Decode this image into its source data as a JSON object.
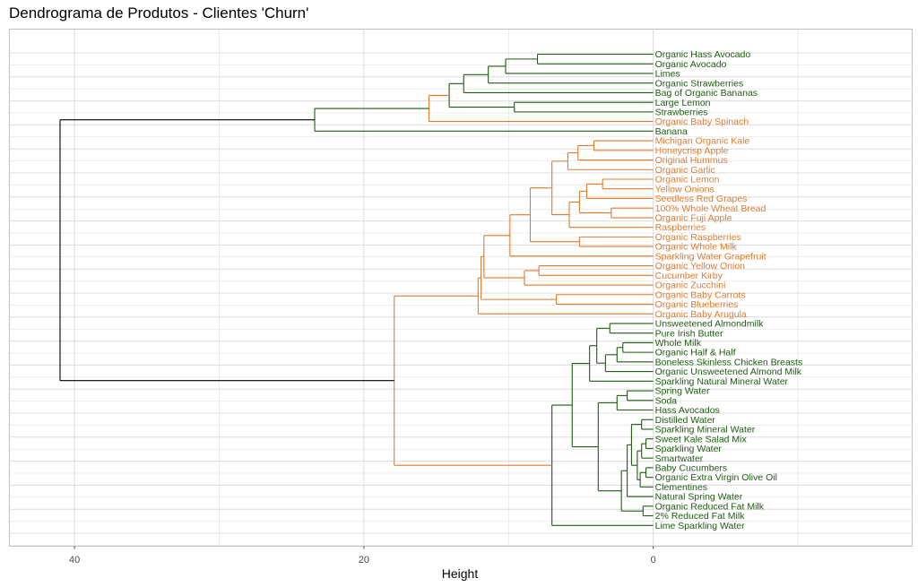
{
  "chart_data": {
    "type": "dendrogram",
    "title": "Dendrograma de Produtos - Clientes 'Churn'",
    "xlabel": "Height",
    "x_ticks": [
      40,
      20,
      0
    ],
    "xlim": [
      44.5,
      -17.9
    ],
    "colors": {
      "green": "#1e5c12",
      "orange": "#e07b2e",
      "root": "#000000",
      "grid": "#dcdcdc",
      "panel_border": "#bfbfbf"
    },
    "leaves": [
      {
        "label": "Organic Hass Avocado",
        "color": "green"
      },
      {
        "label": "Organic Avocado",
        "color": "green"
      },
      {
        "label": "Limes",
        "color": "green"
      },
      {
        "label": "Organic Strawberries",
        "color": "green"
      },
      {
        "label": "Bag of Organic Bananas",
        "color": "green"
      },
      {
        "label": "Large Lemon",
        "color": "green"
      },
      {
        "label": "Strawberries",
        "color": "green"
      },
      {
        "label": "Organic Baby Spinach",
        "color": "orange"
      },
      {
        "label": "Banana",
        "color": "green"
      },
      {
        "label": "Michigan Organic Kale",
        "color": "orange"
      },
      {
        "label": "Honeycrisp Apple",
        "color": "orange"
      },
      {
        "label": "Original Hummus",
        "color": "orange"
      },
      {
        "label": "Organic Garlic",
        "color": "orange"
      },
      {
        "label": "Organic Lemon",
        "color": "orange"
      },
      {
        "label": "Yellow Onions",
        "color": "orange"
      },
      {
        "label": "Seedless Red Grapes",
        "color": "orange"
      },
      {
        "label": "100% Whole Wheat Bread",
        "color": "orange"
      },
      {
        "label": "Organic Fuji Apple",
        "color": "orange"
      },
      {
        "label": "Raspberries",
        "color": "orange"
      },
      {
        "label": "Organic Raspberries",
        "color": "orange"
      },
      {
        "label": "Organic Whole Milk",
        "color": "orange"
      },
      {
        "label": "Sparkling Water Grapefruit",
        "color": "orange"
      },
      {
        "label": "Organic Yellow Onion",
        "color": "orange"
      },
      {
        "label": "Cucumber Kirby",
        "color": "orange"
      },
      {
        "label": "Organic Zucchini",
        "color": "orange"
      },
      {
        "label": "Organic Baby Carrots",
        "color": "orange"
      },
      {
        "label": "Organic Blueberries",
        "color": "orange"
      },
      {
        "label": "Organic Baby Arugula",
        "color": "orange"
      },
      {
        "label": "Unsweetened Almondmilk",
        "color": "green"
      },
      {
        "label": "Pure Irish Butter",
        "color": "green"
      },
      {
        "label": "Whole Milk",
        "color": "green"
      },
      {
        "label": "Organic Half & Half",
        "color": "green"
      },
      {
        "label": "Boneless Skinless Chicken Breasts",
        "color": "green"
      },
      {
        "label": "Organic Unsweetened Almond Milk",
        "color": "green"
      },
      {
        "label": "Sparkling Natural Mineral Water",
        "color": "green"
      },
      {
        "label": "Spring Water",
        "color": "green"
      },
      {
        "label": "Soda",
        "color": "green"
      },
      {
        "label": "Hass Avocados",
        "color": "green"
      },
      {
        "label": "Distilled Water",
        "color": "green"
      },
      {
        "label": "Sparkling Mineral Water",
        "color": "green"
      },
      {
        "label": "Sweet Kale Salad Mix",
        "color": "green"
      },
      {
        "label": "Sparkling Water",
        "color": "green"
      },
      {
        "label": "Smartwater",
        "color": "green"
      },
      {
        "label": "Baby Cucumbers",
        "color": "green"
      },
      {
        "label": "Organic Extra Virgin Olive Oil",
        "color": "green"
      },
      {
        "label": "Clementines",
        "color": "green"
      },
      {
        "label": "Natural Spring Water",
        "color": "green"
      },
      {
        "label": "Organic Reduced Fat Milk",
        "color": "green"
      },
      {
        "label": "2% Reduced Fat Milk",
        "color": "green"
      },
      {
        "label": "Lime Sparkling Water",
        "color": "green"
      }
    ],
    "merges": [
      {
        "id": "g1",
        "children": [
          0,
          1
        ],
        "height": 8.0,
        "color": "green"
      },
      {
        "id": "g2",
        "children": [
          "g1",
          2
        ],
        "height": 10.2,
        "color": "green"
      },
      {
        "id": "g3",
        "children": [
          "g2",
          3
        ],
        "height": 11.4,
        "color": "green"
      },
      {
        "id": "g4",
        "children": [
          "g3",
          4
        ],
        "height": 13.1,
        "color": "green"
      },
      {
        "id": "g5",
        "children": [
          5,
          6
        ],
        "height": 9.6,
        "color": "green"
      },
      {
        "id": "g6",
        "children": [
          "g4",
          "g5"
        ],
        "height": 14.1,
        "color": "green"
      },
      {
        "id": "g7",
        "children": [
          "g6",
          7
        ],
        "height": 15.5,
        "color": "orange"
      },
      {
        "id": "g8",
        "children": [
          "g7",
          8
        ],
        "height": 23.4,
        "color": "green"
      },
      {
        "id": "o1",
        "children": [
          9,
          10
        ],
        "height": 4.1,
        "color": "orange"
      },
      {
        "id": "o2",
        "children": [
          "o1",
          11
        ],
        "height": 5.2,
        "color": "orange"
      },
      {
        "id": "o3",
        "children": [
          "o2",
          12
        ],
        "height": 5.9,
        "color": "orange"
      },
      {
        "id": "o4",
        "children": [
          13,
          14
        ],
        "height": 3.5,
        "color": "orange"
      },
      {
        "id": "o5",
        "children": [
          "o4",
          15
        ],
        "height": 4.6,
        "color": "orange"
      },
      {
        "id": "o6",
        "children": [
          16,
          17
        ],
        "height": 2.9,
        "color": "orange"
      },
      {
        "id": "o7",
        "children": [
          "o5",
          "o6"
        ],
        "height": 5.1,
        "color": "orange"
      },
      {
        "id": "o8",
        "children": [
          "o7",
          18
        ],
        "height": 5.8,
        "color": "orange"
      },
      {
        "id": "o9",
        "children": [
          "o3",
          "o8"
        ],
        "height": 7.0,
        "color": "orange"
      },
      {
        "id": "o10",
        "children": [
          19,
          20
        ],
        "height": 5.1,
        "color": "orange"
      },
      {
        "id": "o11",
        "children": [
          "o9",
          "o10"
        ],
        "height": 8.5,
        "color": "orange"
      },
      {
        "id": "o12",
        "children": [
          "o11",
          21
        ],
        "height": 9.9,
        "color": "orange"
      },
      {
        "id": "o13",
        "children": [
          22,
          23
        ],
        "height": 7.9,
        "color": "orange"
      },
      {
        "id": "o14",
        "children": [
          "o13",
          24
        ],
        "height": 8.9,
        "color": "orange"
      },
      {
        "id": "o15",
        "children": [
          "o12",
          "o14"
        ],
        "height": 11.7,
        "color": "orange"
      },
      {
        "id": "o16",
        "children": [
          25,
          26
        ],
        "height": 6.7,
        "color": "orange"
      },
      {
        "id": "o17",
        "children": [
          "o15",
          "o16"
        ],
        "height": 11.9,
        "color": "orange"
      },
      {
        "id": "o18",
        "children": [
          "o17",
          27
        ],
        "height": 12.1,
        "color": "orange"
      },
      {
        "id": "d1",
        "children": [
          28,
          29
        ],
        "height": 3.0,
        "color": "green"
      },
      {
        "id": "d2",
        "children": [
          30,
          31
        ],
        "height": 2.1,
        "color": "green"
      },
      {
        "id": "d3",
        "children": [
          "d2",
          32
        ],
        "height": 2.5,
        "color": "green"
      },
      {
        "id": "d4",
        "children": [
          "d3",
          33
        ],
        "height": 3.3,
        "color": "green"
      },
      {
        "id": "d5",
        "children": [
          "d1",
          "d4"
        ],
        "height": 3.9,
        "color": "green"
      },
      {
        "id": "d6",
        "children": [
          "d5",
          34
        ],
        "height": 4.4,
        "color": "green"
      },
      {
        "id": "d7",
        "children": [
          35,
          36
        ],
        "height": 1.8,
        "color": "green"
      },
      {
        "id": "d8",
        "children": [
          "d7",
          37
        ],
        "height": 2.5,
        "color": "green"
      },
      {
        "id": "d9",
        "children": [
          38,
          39
        ],
        "height": 0.8,
        "color": "green"
      },
      {
        "id": "d10",
        "children": [
          40,
          41
        ],
        "height": 0.5,
        "color": "green"
      },
      {
        "id": "d11",
        "children": [
          "d10",
          42
        ],
        "height": 0.8,
        "color": "green"
      },
      {
        "id": "d12",
        "children": [
          43,
          44
        ],
        "height": 0.5,
        "color": "green"
      },
      {
        "id": "d13",
        "children": [
          "d12",
          45
        ],
        "height": 0.9,
        "color": "green"
      },
      {
        "id": "d14",
        "children": [
          "d11",
          "d13"
        ],
        "height": 1.1,
        "color": "green"
      },
      {
        "id": "d15",
        "children": [
          "d9",
          "d14"
        ],
        "height": 1.5,
        "color": "green"
      },
      {
        "id": "d16",
        "children": [
          "d15",
          46
        ],
        "height": 1.8,
        "color": "green"
      },
      {
        "id": "d17",
        "children": [
          47,
          48
        ],
        "height": 0.7,
        "color": "green"
      },
      {
        "id": "d18",
        "children": [
          "d16",
          "d17"
        ],
        "height": 2.2,
        "color": "green"
      },
      {
        "id": "d19",
        "children": [
          "d8",
          "d18"
        ],
        "height": 3.8,
        "color": "green"
      },
      {
        "id": "d20",
        "children": [
          "d6",
          "d19"
        ],
        "height": 5.6,
        "color": "green"
      },
      {
        "id": "d21",
        "children": [
          "d20",
          49
        ],
        "height": 7.0,
        "color": "green"
      },
      {
        "id": "d22",
        "children": [
          "o18",
          "d21"
        ],
        "height": 17.9,
        "color": "orange"
      },
      {
        "id": "root",
        "children": [
          "g8",
          "d22"
        ],
        "height": 41.0,
        "color": "root"
      }
    ]
  }
}
